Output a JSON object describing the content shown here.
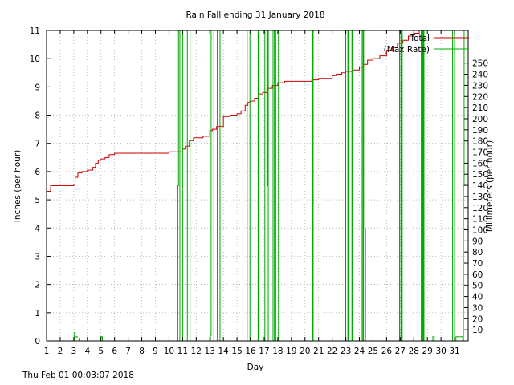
{
  "chart_data": {
    "type": "line",
    "title": "Rain Fall ending 31 January 2018",
    "xlabel": "Day",
    "ylabel": "Inches (per hour)",
    "y2label": "Millimeters (per hour)",
    "xlim": [
      1,
      32
    ],
    "ylim": [
      0,
      11
    ],
    "y2lim": [
      0,
      279.4
    ],
    "x_ticks": [
      1,
      2,
      3,
      4,
      5,
      6,
      7,
      8,
      9,
      10,
      11,
      12,
      13,
      14,
      15,
      16,
      17,
      18,
      19,
      20,
      21,
      22,
      23,
      24,
      25,
      26,
      27,
      28,
      29,
      30,
      31
    ],
    "y_ticks": [
      0,
      1,
      2,
      3,
      4,
      5,
      6,
      7,
      8,
      9,
      10,
      11
    ],
    "y2_ticks": [
      10,
      20,
      30,
      40,
      50,
      60,
      70,
      80,
      90,
      100,
      110,
      120,
      130,
      140,
      150,
      160,
      170,
      180,
      190,
      200,
      210,
      220,
      230,
      240,
      250
    ],
    "grid": true,
    "legend_position": "top-right",
    "series": [
      {
        "name": "Total",
        "color": "#cc0000",
        "x": [
          1.0,
          1.3,
          2.0,
          2.5,
          3.0,
          3.1,
          3.3,
          3.6,
          4.0,
          4.4,
          4.6,
          4.8,
          5.0,
          5.3,
          5.6,
          6.0,
          6.5,
          8.0,
          9.0,
          10.0,
          10.6,
          11.0,
          11.2,
          11.5,
          11.8,
          12.5,
          13.0,
          13.2,
          13.5,
          14.0,
          14.5,
          15.0,
          15.3,
          15.6,
          15.8,
          16.0,
          16.3,
          16.6,
          16.9,
          17.2,
          17.6,
          18.0,
          18.5,
          19.0,
          20.0,
          20.5,
          21.0,
          21.5,
          22.0,
          22.3,
          22.7,
          23.0,
          23.5,
          24.0,
          24.3,
          24.6,
          25.0,
          25.5,
          26.0,
          26.4,
          26.8,
          27.2,
          27.6,
          28.0,
          28.4,
          28.6,
          32.0
        ],
        "y": [
          5.3,
          5.5,
          5.5,
          5.5,
          5.55,
          5.8,
          5.95,
          6.0,
          6.05,
          6.15,
          6.3,
          6.4,
          6.45,
          6.5,
          6.6,
          6.65,
          6.65,
          6.65,
          6.65,
          6.7,
          6.7,
          6.8,
          6.9,
          7.1,
          7.2,
          7.25,
          7.45,
          7.5,
          7.6,
          7.95,
          8.0,
          8.05,
          8.15,
          8.35,
          8.45,
          8.5,
          8.6,
          8.75,
          8.8,
          8.95,
          9.05,
          9.15,
          9.2,
          9.2,
          9.2,
          9.25,
          9.3,
          9.3,
          9.4,
          9.45,
          9.5,
          9.55,
          9.6,
          9.7,
          9.8,
          9.95,
          10.0,
          10.1,
          10.3,
          10.4,
          10.55,
          10.65,
          10.8,
          10.9,
          11.0,
          11.0,
          11.0
        ]
      },
      {
        "name": "(Max Rate)",
        "color": "#00aa00",
        "x": [
          1.0,
          3.0,
          3.05,
          3.1,
          3.25,
          3.4,
          4.8,
          4.95,
          5.1,
          10.6,
          10.65,
          10.7,
          10.75,
          10.8,
          10.9,
          10.95,
          11.0,
          11.3,
          11.35,
          11.4,
          11.5,
          11.55,
          13.0,
          13.05,
          13.1,
          13.2,
          13.25,
          13.3,
          13.5,
          13.55,
          13.6,
          13.7,
          13.75,
          13.8,
          15.7,
          15.75,
          15.8,
          15.9,
          15.95,
          16.0,
          16.5,
          16.55,
          16.6,
          17.0,
          17.05,
          17.1,
          17.15,
          17.2,
          17.25,
          17.3,
          17.6,
          17.65,
          17.7,
          17.75,
          17.8,
          17.85,
          18.0,
          18.05,
          18.1,
          20.5,
          20.55,
          20.6,
          22.9,
          22.95,
          23.0,
          23.1,
          23.15,
          23.2,
          23.4,
          23.45,
          23.5,
          24.1,
          24.15,
          24.2,
          24.25,
          24.3,
          24.35,
          24.4,
          24.45,
          24.5,
          26.9,
          26.95,
          27.0,
          27.05,
          27.1,
          27.15,
          28.5,
          28.55,
          28.6,
          28.65,
          28.7,
          28.75,
          29.3,
          29.4,
          29.5,
          30.8,
          30.85,
          30.9,
          31.0,
          31.05,
          31.1,
          31.6,
          31.65,
          31.7,
          32.0
        ],
        "y": [
          0,
          0,
          0.3,
          0.15,
          0.1,
          0,
          0,
          0.15,
          0,
          0,
          5.5,
          11,
          11,
          0,
          0,
          11,
          0,
          0,
          11,
          11,
          11,
          0,
          0,
          0.2,
          11,
          11,
          11,
          0,
          0,
          11,
          11,
          11,
          0,
          0,
          0,
          11,
          11,
          11,
          0,
          0,
          0,
          11,
          0,
          0,
          11,
          11,
          11,
          5.5,
          11,
          0,
          0,
          11,
          11,
          0,
          11,
          0,
          0,
          11,
          0,
          0,
          11,
          0,
          0,
          11,
          0,
          0,
          11,
          0,
          0,
          11,
          0,
          0,
          11,
          11,
          0,
          11,
          11,
          4.0,
          0,
          0,
          0,
          11,
          11,
          0,
          11,
          0,
          0,
          11,
          11,
          0,
          11,
          0,
          0,
          0.15,
          0,
          0,
          11,
          11,
          0,
          0,
          0.15,
          0,
          5.5,
          11,
          0
        ]
      }
    ]
  },
  "footer": {
    "timestamp": "Thu Feb 01 00:03:07 2018"
  }
}
